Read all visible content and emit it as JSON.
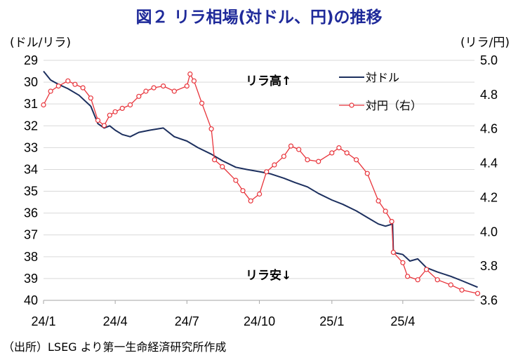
{
  "chart_data": {
    "type": "line",
    "title": "図２ リラ相場(対ドル、円)の推移",
    "left_unit": "(ドル/リラ)",
    "right_unit": "(リラ/円)",
    "left_axis": {
      "min": 29,
      "max": 40,
      "inverted": true,
      "ticks": [
        "29",
        "30",
        "31",
        "32",
        "33",
        "34",
        "35",
        "36",
        "37",
        "38",
        "39",
        "40"
      ]
    },
    "right_axis": {
      "min": 3.6,
      "max": 5.0,
      "ticks": [
        "5.0",
        "4.8",
        "4.6",
        "4.4",
        "4.2",
        "4.0",
        "3.8",
        "3.6"
      ]
    },
    "x_axis": {
      "start": "2024-01",
      "end": "2025-07",
      "ticks": [
        "24/1",
        "24/4",
        "24/7",
        "24/10",
        "25/1",
        "25/4"
      ]
    },
    "grid": "horizontal",
    "legend_position": "top-right",
    "series": [
      {
        "name": "対ドル",
        "axis": "left",
        "color": "#1c2f5e",
        "style": "line",
        "points": [
          [
            "2024-01-01",
            29.5
          ],
          [
            "2024-01-10",
            29.9
          ],
          [
            "2024-01-20",
            30.1
          ],
          [
            "2024-02-01",
            30.3
          ],
          [
            "2024-02-15",
            30.6
          ],
          [
            "2024-03-01",
            31.1
          ],
          [
            "2024-03-10",
            31.9
          ],
          [
            "2024-03-18",
            32.1
          ],
          [
            "2024-03-25",
            32.0
          ],
          [
            "2024-04-01",
            32.2
          ],
          [
            "2024-04-10",
            32.4
          ],
          [
            "2024-04-20",
            32.5
          ],
          [
            "2024-05-01",
            32.3
          ],
          [
            "2024-05-15",
            32.2
          ],
          [
            "2024-06-01",
            32.1
          ],
          [
            "2024-06-15",
            32.5
          ],
          [
            "2024-07-01",
            32.7
          ],
          [
            "2024-07-15",
            33.0
          ],
          [
            "2024-08-01",
            33.3
          ],
          [
            "2024-08-15",
            33.6
          ],
          [
            "2024-09-01",
            33.9
          ],
          [
            "2024-09-15",
            34.0
          ],
          [
            "2024-10-01",
            34.1
          ],
          [
            "2024-10-15",
            34.2
          ],
          [
            "2024-11-01",
            34.4
          ],
          [
            "2024-11-15",
            34.6
          ],
          [
            "2024-12-01",
            34.8
          ],
          [
            "2024-12-15",
            35.1
          ],
          [
            "2025-01-01",
            35.4
          ],
          [
            "2025-01-15",
            35.6
          ],
          [
            "2025-02-01",
            35.9
          ],
          [
            "2025-02-15",
            36.2
          ],
          [
            "2025-03-01",
            36.5
          ],
          [
            "2025-03-10",
            36.6
          ],
          [
            "2025-03-19",
            36.5
          ],
          [
            "2025-03-20",
            37.8
          ],
          [
            "2025-04-01",
            37.9
          ],
          [
            "2025-04-10",
            38.2
          ],
          [
            "2025-04-20",
            38.1
          ],
          [
            "2025-05-01",
            38.5
          ],
          [
            "2025-05-15",
            38.7
          ],
          [
            "2025-06-01",
            38.9
          ],
          [
            "2025-06-15",
            39.1
          ],
          [
            "2025-07-05",
            39.4
          ]
        ]
      },
      {
        "name": "対円（右）",
        "axis": "right",
        "color": "#e8333a",
        "style": "line-marker",
        "points": [
          [
            "2024-01-01",
            4.74
          ],
          [
            "2024-01-10",
            4.82
          ],
          [
            "2024-01-20",
            4.85
          ],
          [
            "2024-02-01",
            4.88
          ],
          [
            "2024-02-10",
            4.86
          ],
          [
            "2024-02-20",
            4.84
          ],
          [
            "2024-03-01",
            4.78
          ],
          [
            "2024-03-10",
            4.65
          ],
          [
            "2024-03-18",
            4.62
          ],
          [
            "2024-03-25",
            4.68
          ],
          [
            "2024-04-01",
            4.7
          ],
          [
            "2024-04-10",
            4.72
          ],
          [
            "2024-04-20",
            4.74
          ],
          [
            "2024-05-01",
            4.79
          ],
          [
            "2024-05-10",
            4.82
          ],
          [
            "2024-05-20",
            4.84
          ],
          [
            "2024-06-01",
            4.85
          ],
          [
            "2024-06-15",
            4.82
          ],
          [
            "2024-07-01",
            4.85
          ],
          [
            "2024-07-05",
            4.92
          ],
          [
            "2024-07-10",
            4.88
          ],
          [
            "2024-07-20",
            4.75
          ],
          [
            "2024-08-01",
            4.6
          ],
          [
            "2024-08-05",
            4.42
          ],
          [
            "2024-08-15",
            4.38
          ],
          [
            "2024-09-01",
            4.3
          ],
          [
            "2024-09-10",
            4.24
          ],
          [
            "2024-09-20",
            4.18
          ],
          [
            "2024-10-01",
            4.22
          ],
          [
            "2024-10-10",
            4.35
          ],
          [
            "2024-10-20",
            4.39
          ],
          [
            "2024-11-01",
            4.44
          ],
          [
            "2024-11-10",
            4.5
          ],
          [
            "2024-11-20",
            4.48
          ],
          [
            "2024-12-01",
            4.42
          ],
          [
            "2024-12-15",
            4.41
          ],
          [
            "2025-01-01",
            4.46
          ],
          [
            "2025-01-10",
            4.49
          ],
          [
            "2025-01-20",
            4.46
          ],
          [
            "2025-02-01",
            4.42
          ],
          [
            "2025-02-15",
            4.34
          ],
          [
            "2025-03-01",
            4.18
          ],
          [
            "2025-03-10",
            4.12
          ],
          [
            "2025-03-18",
            4.06
          ],
          [
            "2025-03-20",
            3.88
          ],
          [
            "2025-04-01",
            3.82
          ],
          [
            "2025-04-07",
            3.74
          ],
          [
            "2025-04-20",
            3.72
          ],
          [
            "2025-05-01",
            3.78
          ],
          [
            "2025-05-15",
            3.72
          ],
          [
            "2025-06-01",
            3.69
          ],
          [
            "2025-06-15",
            3.66
          ],
          [
            "2025-07-05",
            3.64
          ]
        ]
      }
    ],
    "annotations": [
      {
        "text": "リラ高↑",
        "position": "upper-middle"
      },
      {
        "text": "リラ安↓",
        "position": "lower-middle"
      }
    ]
  },
  "source": "（出所）LSEG より第一生命経済研究所作成",
  "colors": {
    "title": "#1f2a9a",
    "grid": "#d9d9d9",
    "usd_line": "#1c2f5e",
    "jpy_line": "#e8333a"
  }
}
